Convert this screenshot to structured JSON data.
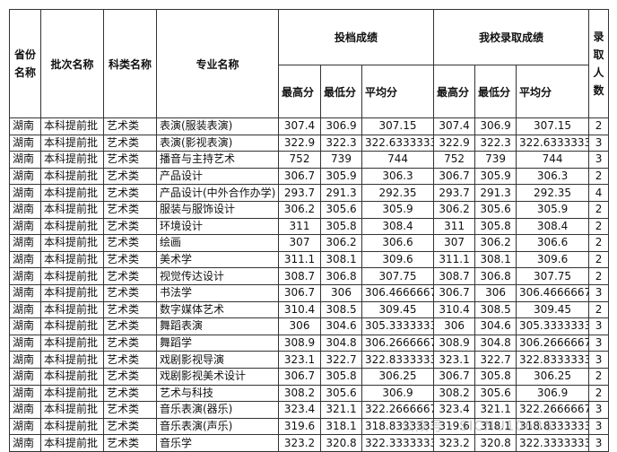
{
  "table": {
    "headers": {
      "province": "省份名称",
      "batch": "批次名称",
      "category": "科类名称",
      "major": "专业名称",
      "group_filing": "投档成绩",
      "group_school": "我校录取成绩",
      "admitted": "录取人数",
      "max": "最高分",
      "min": "最低分",
      "avg": "平均分"
    },
    "rows": [
      [
        "湖南",
        "本科提前批",
        "艺术类",
        "表演(服装表演)",
        "307.4",
        "306.9",
        "307.15",
        "307.4",
        "306.9",
        "307.15",
        "2"
      ],
      [
        "湖南",
        "本科提前批",
        "艺术类",
        "表演(影视表演)",
        "322.9",
        "322.3",
        "322.6333333",
        "322.9",
        "322.3",
        "322.6333333",
        "3"
      ],
      [
        "湖南",
        "本科提前批",
        "艺术类",
        "播音与主持艺术",
        "752",
        "739",
        "744",
        "752",
        "739",
        "744",
        "3"
      ],
      [
        "湖南",
        "本科提前批",
        "艺术类",
        "产品设计",
        "306.7",
        "305.9",
        "306.3",
        "306.7",
        "305.9",
        "306.3",
        "2"
      ],
      [
        "湖南",
        "本科提前批",
        "艺术类",
        "产品设计(中外合作办学)",
        "293.7",
        "291.3",
        "292.35",
        "293.7",
        "291.3",
        "292.35",
        "4"
      ],
      [
        "湖南",
        "本科提前批",
        "艺术类",
        "服装与服饰设计",
        "306.2",
        "305.6",
        "305.9",
        "306.2",
        "305.6",
        "305.9",
        "2"
      ],
      [
        "湖南",
        "本科提前批",
        "艺术类",
        "环境设计",
        "311",
        "305.8",
        "308.4",
        "311",
        "305.8",
        "308.4",
        "2"
      ],
      [
        "湖南",
        "本科提前批",
        "艺术类",
        "绘画",
        "307",
        "306.2",
        "306.6",
        "307",
        "306.2",
        "306.6",
        "2"
      ],
      [
        "湖南",
        "本科提前批",
        "艺术类",
        "美术学",
        "311.1",
        "308.1",
        "309.6",
        "311.1",
        "308.1",
        "309.6",
        "2"
      ],
      [
        "湖南",
        "本科提前批",
        "艺术类",
        "视觉传达设计",
        "308.7",
        "306.8",
        "307.75",
        "308.7",
        "306.8",
        "307.75",
        "2"
      ],
      [
        "湖南",
        "本科提前批",
        "艺术类",
        "书法学",
        "306.7",
        "306",
        "306.4666667",
        "306.7",
        "306",
        "306.4666667",
        "3"
      ],
      [
        "湖南",
        "本科提前批",
        "艺术类",
        "数字媒体艺术",
        "310.4",
        "308.5",
        "309.45",
        "310.4",
        "308.5",
        "309.45",
        "2"
      ],
      [
        "湖南",
        "本科提前批",
        "艺术类",
        "舞蹈表演",
        "306",
        "304.6",
        "305.3333333",
        "306",
        "304.6",
        "305.3333333",
        "3"
      ],
      [
        "湖南",
        "本科提前批",
        "艺术类",
        "舞蹈学",
        "308.9",
        "304.8",
        "306.2666667",
        "308.9",
        "304.8",
        "306.2666667",
        "3"
      ],
      [
        "湖南",
        "本科提前批",
        "艺术类",
        "戏剧影视导演",
        "323.1",
        "322.7",
        "322.8333333",
        "323.1",
        "322.7",
        "322.8333333",
        "3"
      ],
      [
        "湖南",
        "本科提前批",
        "艺术类",
        "戏剧影视美术设计",
        "306.7",
        "305.8",
        "306.25",
        "306.7",
        "305.8",
        "306.25",
        "2"
      ],
      [
        "湖南",
        "本科提前批",
        "艺术类",
        "艺术与科技",
        "308.2",
        "305.6",
        "306.9",
        "308.2",
        "305.6",
        "306.9",
        "2"
      ],
      [
        "湖南",
        "本科提前批",
        "艺术类",
        "音乐表演(器乐)",
        "323.4",
        "321.1",
        "322.2666667",
        "323.4",
        "321.1",
        "322.2666667",
        "3"
      ],
      [
        "湖南",
        "本科提前批",
        "艺术类",
        "音乐表演(声乐)",
        "319.6",
        "318.1",
        "318.8333333",
        "319.6",
        "318.1",
        "318.8333333",
        "3"
      ],
      [
        "湖南",
        "本科提前批",
        "艺术类",
        "音乐学",
        "323.2",
        "320.8",
        "322.3333333",
        "323.2",
        "320.8",
        "322.3333333",
        "3"
      ]
    ]
  },
  "watermark": "公众号 · SICNU10636"
}
